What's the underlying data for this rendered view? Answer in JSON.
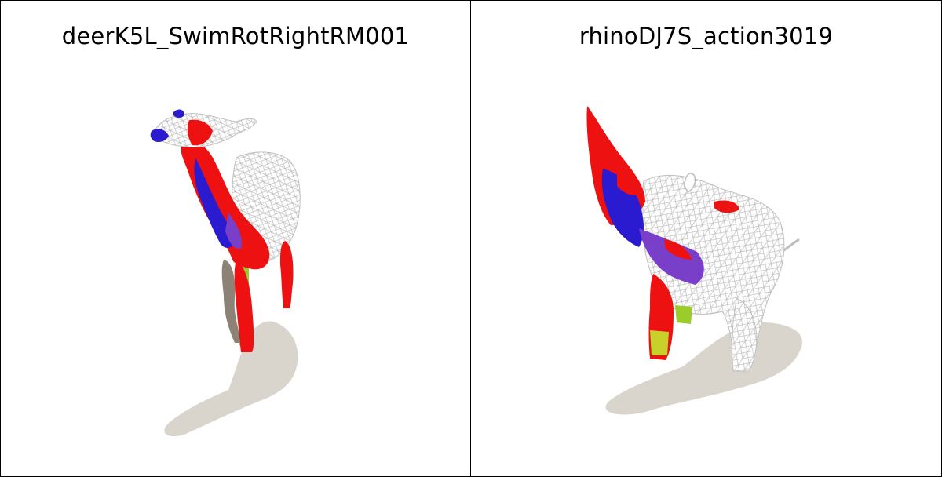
{
  "panels": [
    {
      "title": "deerK5L_SwimRotRightRM001"
    },
    {
      "title": "rhinoDJ7S_action3019"
    }
  ],
  "colors": {
    "red": "#ee1111",
    "blue": "#2a1ad0",
    "purple": "#7a3fc8",
    "green": "#9ccc2a",
    "gray": "#8c8275",
    "mesh": "#c8c8c8",
    "shadow": "#d9d5cc"
  }
}
